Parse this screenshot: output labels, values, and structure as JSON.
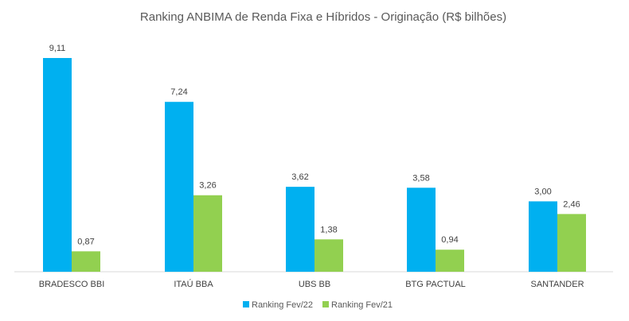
{
  "chart_data": {
    "type": "bar",
    "title": "Ranking ANBIMA de Renda Fixa e Híbridos - Originação (R$ bilhões)",
    "categories": [
      "BRADESCO BBI",
      "ITAÚ BBA",
      "UBS BB",
      "BTG PACTUAL",
      "SANTANDER"
    ],
    "series": [
      {
        "name": "Ranking Fev/22",
        "color": "#00B0F0",
        "values": [
          9.11,
          7.24,
          3.62,
          3.58,
          3.0
        ],
        "labels": [
          "9,11",
          "7,24",
          "3,62",
          "3,58",
          "3,00"
        ]
      },
      {
        "name": "Ranking Fev/21",
        "color": "#92D050",
        "values": [
          0.87,
          3.26,
          1.38,
          0.94,
          2.46
        ],
        "labels": [
          "0,87",
          "3,26",
          "1,38",
          "0,94",
          "2,46"
        ]
      }
    ],
    "ylim": [
      0,
      9.11
    ],
    "grid": false,
    "legend": "bottom",
    "xlabel": "",
    "ylabel": ""
  }
}
